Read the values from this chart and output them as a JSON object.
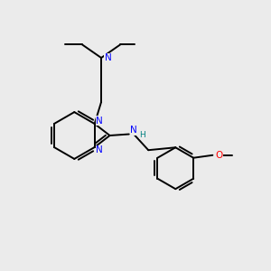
{
  "bg_color": "#ebebeb",
  "bond_color": "#000000",
  "N_color": "#0000ff",
  "O_color": "#ff0000",
  "H_color": "#008080",
  "line_width": 1.4,
  "fig_size": [
    3.0,
    3.0
  ],
  "dpi": 100,
  "xlim": [
    0,
    10
  ],
  "ylim": [
    0,
    10
  ]
}
